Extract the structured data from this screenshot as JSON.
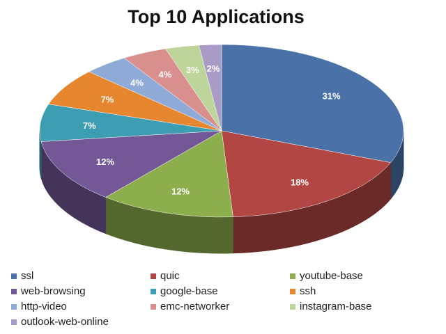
{
  "chart_data": {
    "type": "pie3d",
    "title": "Top 10 Applications",
    "categories": [
      "ssl",
      "quic",
      "youtube-base",
      "web-browsing",
      "google-base",
      "ssh",
      "http-video",
      "emc-networker",
      "instagram-base",
      "outlook-web-online"
    ],
    "values": [
      31,
      18,
      12,
      12,
      7,
      7,
      4,
      4,
      3,
      2
    ],
    "value_labels": [
      "31%",
      "18%",
      "12%",
      "12%",
      "7%",
      "7%",
      "4%",
      "4%",
      "3%",
      "2%"
    ],
    "colors": [
      "#4a72a8",
      "#b14643",
      "#8cae4c",
      "#735796",
      "#3d9db3",
      "#e6862f",
      "#8eaad7",
      "#d88f8d",
      "#bdd59a",
      "#aa9bc6"
    ],
    "legend": "bottom"
  }
}
